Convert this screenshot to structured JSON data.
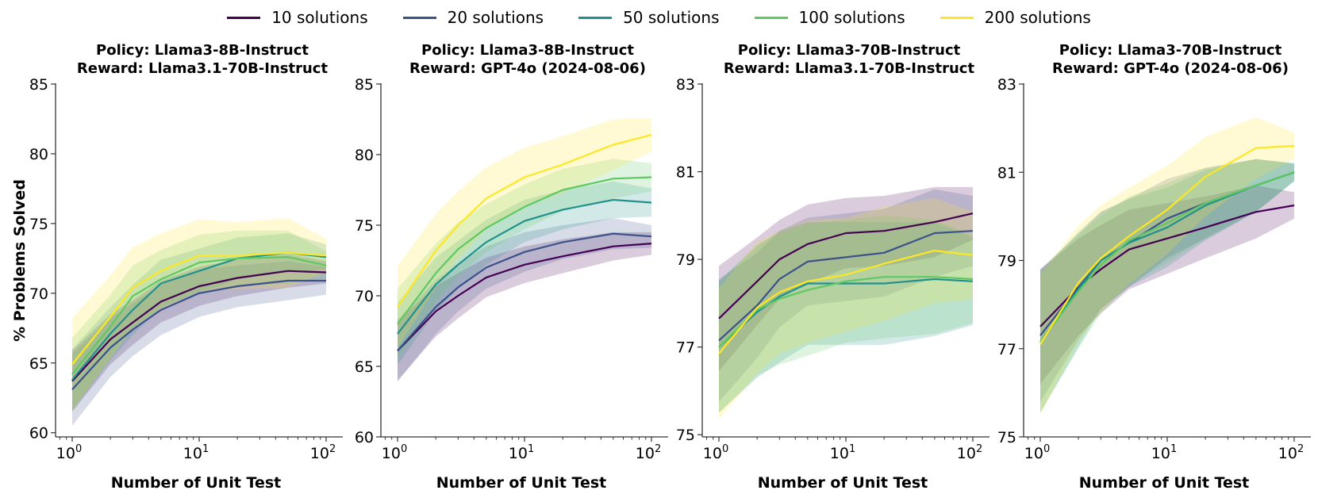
{
  "chart_data": [
    {
      "type": "line",
      "title_line1": "Policy: Llama3-8B-Instruct",
      "title_line2": "Reward: Llama3.1-70B-Instruct",
      "xlabel": "Number of Unit Test",
      "ylabel": "% Problems Solved",
      "xscale": "log",
      "xlim": [
        1,
        100
      ],
      "ylim": [
        59.7,
        85
      ],
      "yticks": [
        60,
        65,
        70,
        75,
        80,
        85
      ],
      "x": [
        1,
        2,
        3,
        5,
        10,
        20,
        50,
        100
      ],
      "series": [
        {
          "name": "10 solutions",
          "values": [
            63.7,
            66.7,
            67.9,
            69.4,
            70.5,
            71.1,
            71.6,
            71.5
          ],
          "band": [
            2.2,
            1.8,
            1.6,
            1.5,
            1.4,
            1.3,
            1.2,
            0.8
          ]
        },
        {
          "name": "20 solutions",
          "values": [
            63.1,
            66.1,
            67.4,
            68.8,
            70.0,
            70.5,
            70.9,
            70.9
          ],
          "band": [
            2.6,
            2.1,
            1.9,
            1.8,
            1.7,
            1.5,
            1.4,
            1.0
          ]
        },
        {
          "name": "50 solutions",
          "values": [
            63.8,
            67.1,
            68.8,
            70.7,
            71.6,
            72.5,
            72.9,
            72.6
          ],
          "band": [
            2.2,
            1.9,
            1.8,
            1.7,
            1.6,
            1.5,
            1.4,
            0.9
          ]
        },
        {
          "name": "100 solutions",
          "values": [
            64.2,
            67.6,
            69.8,
            71.0,
            72.2,
            72.5,
            72.6,
            72.0
          ],
          "band": [
            2.6,
            2.3,
            2.2,
            2.1,
            2.0,
            2.0,
            1.9,
            1.0
          ]
        },
        {
          "name": "200 solutions",
          "values": [
            64.9,
            68.3,
            70.4,
            71.6,
            72.7,
            72.7,
            72.9,
            72.7
          ],
          "band": [
            3.3,
            3.0,
            2.9,
            2.7,
            2.6,
            2.4,
            2.5,
            1.2
          ]
        }
      ]
    },
    {
      "type": "line",
      "title_line1": "Policy: Llama3-8B-Instruct",
      "title_line2": "Reward: GPT-4o (2024-08-06)",
      "xlabel": "Number of Unit Test",
      "ylabel": "",
      "xscale": "log",
      "xlim": [
        1,
        100
      ],
      "ylim": [
        60,
        85
      ],
      "yticks": [
        60,
        65,
        70,
        75,
        80,
        85
      ],
      "x": [
        1,
        2,
        3,
        5,
        10,
        20,
        50,
        100
      ],
      "series": [
        {
          "name": "10 solutions",
          "values": [
            66.1,
            68.9,
            70.0,
            71.3,
            72.2,
            72.8,
            73.5,
            73.7
          ],
          "band": [
            2.1,
            1.8,
            1.6,
            1.4,
            1.3,
            1.2,
            1.0,
            0.8
          ]
        },
        {
          "name": "20 solutions",
          "values": [
            66.1,
            69.2,
            70.6,
            72.0,
            73.1,
            73.8,
            74.4,
            74.2
          ],
          "band": [
            2.2,
            1.9,
            1.7,
            1.5,
            1.4,
            1.2,
            1.1,
            0.8
          ]
        },
        {
          "name": "50 solutions",
          "values": [
            67.3,
            70.8,
            72.2,
            73.8,
            75.3,
            76.1,
            76.8,
            76.6
          ],
          "band": [
            2.2,
            1.9,
            1.7,
            1.6,
            1.5,
            1.4,
            1.3,
            1.0
          ]
        },
        {
          "name": "100 solutions",
          "values": [
            68.0,
            71.6,
            73.3,
            74.8,
            76.3,
            77.5,
            78.3,
            78.4
          ],
          "band": [
            2.5,
            2.1,
            1.9,
            1.7,
            1.6,
            1.5,
            1.4,
            1.0
          ]
        },
        {
          "name": "200 solutions",
          "values": [
            69.2,
            73.2,
            75.0,
            76.9,
            78.4,
            79.3,
            80.7,
            81.4
          ],
          "band": [
            2.9,
            2.6,
            2.4,
            2.2,
            2.1,
            2.0,
            1.8,
            1.2
          ]
        }
      ]
    },
    {
      "type": "line",
      "title_line1": "Policy: Llama3-70B-Instruct",
      "title_line2": "Reward: Llama3.1-70B-Instruct",
      "xlabel": "Number of Unit Test",
      "ylabel": "",
      "xscale": "log",
      "xlim": [
        1,
        100
      ],
      "ylim": [
        74.95,
        83
      ],
      "yticks": [
        75,
        77,
        79,
        81,
        83
      ],
      "x": [
        1,
        2,
        3,
        5,
        10,
        20,
        50,
        100
      ],
      "series": [
        {
          "name": "10 solutions",
          "values": [
            77.65,
            78.5,
            79.0,
            79.35,
            79.6,
            79.65,
            79.85,
            80.05
          ],
          "band": [
            1.2,
            1.0,
            0.9,
            0.9,
            0.8,
            0.8,
            0.8,
            0.6
          ]
        },
        {
          "name": "20 solutions",
          "values": [
            77.15,
            77.95,
            78.55,
            78.95,
            79.05,
            79.15,
            79.6,
            79.65
          ],
          "band": [
            1.4,
            1.2,
            1.1,
            1.0,
            1.0,
            1.0,
            1.0,
            0.8
          ]
        },
        {
          "name": "50 solutions",
          "values": [
            77.0,
            77.8,
            78.15,
            78.45,
            78.45,
            78.45,
            78.55,
            78.5
          ],
          "band": [
            1.5,
            1.5,
            1.5,
            1.4,
            1.4,
            1.4,
            1.3,
            1.0
          ]
        },
        {
          "name": "100 solutions",
          "values": [
            77.0,
            77.85,
            78.1,
            78.3,
            78.5,
            78.6,
            78.6,
            78.55
          ],
          "band": [
            1.5,
            1.5,
            1.5,
            1.5,
            1.4,
            1.4,
            1.3,
            1.0
          ]
        },
        {
          "name": "200 solutions",
          "values": [
            76.85,
            77.9,
            78.25,
            78.5,
            78.65,
            78.9,
            79.2,
            79.1
          ],
          "band": [
            1.5,
            1.5,
            1.4,
            1.4,
            1.3,
            1.3,
            1.2,
            1.0
          ]
        }
      ]
    },
    {
      "type": "line",
      "title_line1": "Policy: Llama3-70B-Instruct",
      "title_line2": "Reward: GPT-4o (2024-08-06)",
      "xlabel": "Number of Unit Test",
      "ylabel": "",
      "xscale": "log",
      "xlim": [
        1,
        100
      ],
      "ylim": [
        75,
        83
      ],
      "yticks": [
        75,
        77,
        79,
        81,
        83
      ],
      "x": [
        1,
        2,
        3,
        5,
        10,
        20,
        50,
        100
      ],
      "series": [
        {
          "name": "10 solutions",
          "values": [
            77.5,
            78.4,
            78.8,
            79.25,
            79.5,
            79.75,
            80.1,
            80.25
          ],
          "band": [
            1.3,
            1.1,
            1.0,
            0.9,
            0.8,
            0.7,
            0.6,
            0.3
          ]
        },
        {
          "name": "20 solutions",
          "values": [
            77.3,
            78.4,
            79.0,
            79.4,
            79.95,
            80.3,
            80.7,
            81.0
          ],
          "band": [
            1.5,
            1.2,
            1.1,
            1.0,
            0.9,
            0.8,
            0.6,
            0.2
          ]
        },
        {
          "name": "50 solutions",
          "values": [
            77.15,
            78.35,
            79.0,
            79.4,
            79.75,
            80.25,
            80.7,
            81.0
          ],
          "band": [
            1.6,
            1.3,
            1.1,
            1.0,
            0.9,
            0.8,
            0.6,
            0.2
          ]
        },
        {
          "name": "100 solutions",
          "values": [
            77.15,
            78.3,
            78.9,
            79.45,
            79.85,
            80.3,
            80.7,
            81.0
          ],
          "band": [
            1.6,
            1.3,
            1.1,
            1.0,
            0.9,
            0.8,
            0.6,
            0.2
          ]
        },
        {
          "name": "200 solutions",
          "values": [
            77.1,
            78.5,
            79.05,
            79.55,
            80.15,
            80.9,
            81.55,
            81.6
          ],
          "band": [
            1.6,
            1.3,
            1.2,
            1.1,
            1.0,
            0.9,
            0.7,
            0.3
          ]
        }
      ]
    }
  ],
  "legend": {
    "placement": "top-center",
    "items": [
      {
        "label": "10 solutions",
        "color": "#440154"
      },
      {
        "label": "20 solutions",
        "color": "#3b528b"
      },
      {
        "label": "50 solutions",
        "color": "#21918c"
      },
      {
        "label": "100 solutions",
        "color": "#5ec962"
      },
      {
        "label": "200 solutions",
        "color": "#fde725"
      }
    ]
  },
  "xtick_labels": [
    {
      "base": "10",
      "exp": "0",
      "value": 1
    },
    {
      "base": "10",
      "exp": "1",
      "value": 10
    },
    {
      "base": "10",
      "exp": "2",
      "value": 100
    }
  ]
}
